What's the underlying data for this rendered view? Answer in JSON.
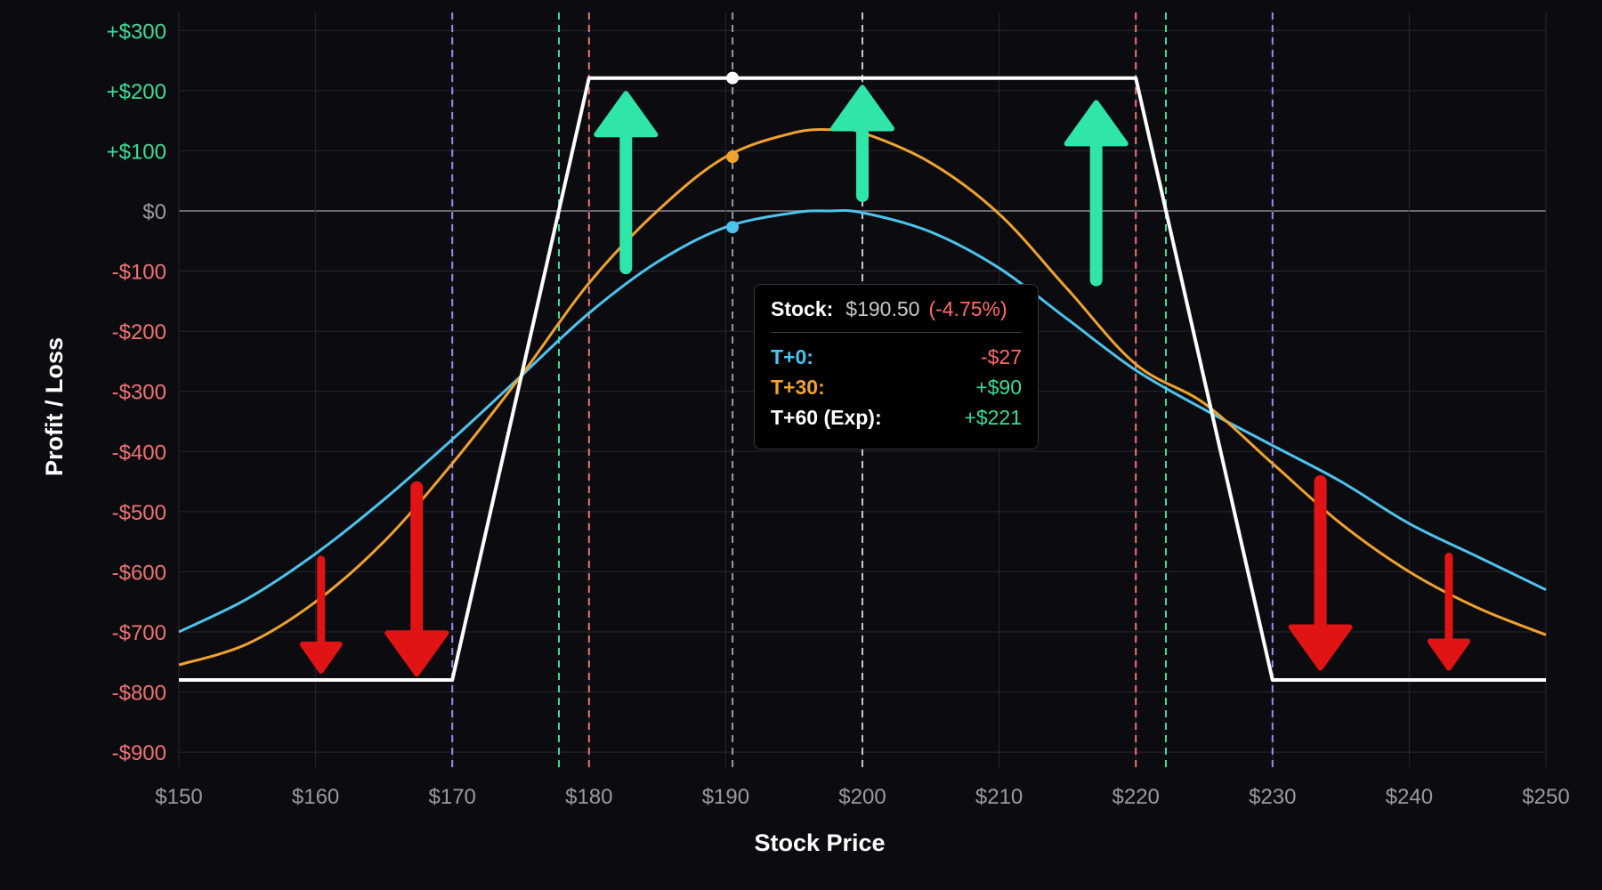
{
  "chart_data": {
    "type": "line",
    "title": "",
    "xlabel": "Stock Price",
    "ylabel": "Profit / Loss",
    "xlim": [
      150,
      250
    ],
    "ylim": [
      -900,
      300
    ],
    "x_ticks": [
      150,
      160,
      170,
      180,
      190,
      200,
      210,
      220,
      230,
      240,
      250
    ],
    "x_tick_labels": [
      "$150",
      "$160",
      "$170",
      "$180",
      "$190",
      "$200",
      "$210",
      "$220",
      "$230",
      "$240",
      "$250"
    ],
    "y_ticks": [
      300,
      200,
      100,
      0,
      -100,
      -200,
      -300,
      -400,
      -500,
      -600,
      -700,
      -800,
      -900
    ],
    "y_tick_labels": [
      "+$300",
      "+$200",
      "+$100",
      "$0",
      "-$100",
      "-$200",
      "-$300",
      "-$400",
      "-$500",
      "-$600",
      "-$700",
      "-$800",
      "-$900"
    ],
    "grid": true,
    "series": [
      {
        "name": "T+0",
        "color": "#4cc4ee",
        "x": [
          150,
          155,
          160,
          165,
          170,
          175,
          180,
          185,
          190,
          195,
          197.5,
          200,
          205,
          210,
          215,
          220,
          225,
          230,
          235,
          240,
          245,
          250
        ],
        "y": [
          -700,
          -645,
          -570,
          -480,
          -380,
          -275,
          -170,
          -85,
          -27,
          -3,
          0,
          -3,
          -35,
          -95,
          -180,
          -265,
          -330,
          -390,
          -450,
          -520,
          -575,
          -630
        ]
      },
      {
        "name": "T+30",
        "color": "#f0a22e",
        "x": [
          150,
          155,
          160,
          165,
          170,
          175,
          180,
          185,
          190,
          195,
          198,
          200,
          205,
          210,
          215,
          220,
          225,
          230,
          235,
          240,
          245,
          250
        ],
        "y": [
          -755,
          -720,
          -650,
          -550,
          -420,
          -275,
          -120,
          0,
          90,
          130,
          135,
          130,
          80,
          -5,
          -130,
          -255,
          -320,
          -420,
          -520,
          -600,
          -660,
          -705
        ]
      },
      {
        "name": "T+60 (Exp)",
        "color": "#ffffff",
        "x": [
          150,
          170,
          180,
          220,
          230,
          250
        ],
        "y": [
          -780,
          -780,
          221,
          221,
          -780,
          -780
        ]
      }
    ],
    "vertical_lines": [
      {
        "x": 170,
        "color": "#9b8cf0"
      },
      {
        "x": 177.8,
        "color": "#3ddc97"
      },
      {
        "x": 180,
        "color": "#f07272"
      },
      {
        "x": 190.5,
        "color": "#9a9aa2"
      },
      {
        "x": 200,
        "color": "#c8c8cc"
      },
      {
        "x": 220,
        "color": "#f07272"
      },
      {
        "x": 222.2,
        "color": "#3ddc97"
      },
      {
        "x": 230,
        "color": "#9b8cf0"
      }
    ],
    "markers": [
      {
        "x": 190.5,
        "y": 221,
        "color": "#ffffff"
      },
      {
        "x": 190.5,
        "y": 90,
        "color": "#f0a22e"
      },
      {
        "x": 190.5,
        "y": -27,
        "color": "#4cc4ee"
      }
    ],
    "arrows": [
      {
        "direction": "up",
        "x": 182.7,
        "y_tail": -95,
        "y_head": 195,
        "color": "#2fe6a8",
        "size": "large"
      },
      {
        "direction": "up",
        "x": 200,
        "y_tail": 25,
        "y_head": 205,
        "color": "#2fe6a8",
        "size": "large"
      },
      {
        "direction": "up",
        "x": 217.1,
        "y_tail": -115,
        "y_head": 180,
        "color": "#2fe6a8",
        "size": "large"
      },
      {
        "direction": "down",
        "x": 160.4,
        "y_tail": -580,
        "y_head": -765,
        "color": "#e01414",
        "size": "small"
      },
      {
        "direction": "down",
        "x": 167.4,
        "y_tail": -460,
        "y_head": -770,
        "color": "#e01414",
        "size": "large"
      },
      {
        "direction": "down",
        "x": 233.5,
        "y_tail": -450,
        "y_head": -760,
        "color": "#e01414",
        "size": "large"
      },
      {
        "direction": "down",
        "x": 242.9,
        "y_tail": -575,
        "y_head": -760,
        "color": "#e01414",
        "size": "small"
      }
    ],
    "colors": {
      "background": "#0c0c10",
      "grid": "#26262c",
      "zero_line": "#6a6a72",
      "positive_tick": "#3ddc97",
      "zero_tick": "#9a9aa2",
      "negative_tick": "#f07272",
      "x_tick": "#9a9aa2"
    }
  },
  "tooltip": {
    "stock_label": "Stock:",
    "stock_value": "$190.50",
    "stock_change": "(-4.75%)",
    "rows": [
      {
        "label": "T+0:",
        "value": "-$27",
        "label_color": "#4cc4ee",
        "value_color": "#ff6b6b"
      },
      {
        "label": "T+30:",
        "value": "+$90",
        "label_color": "#f0a22e",
        "value_color": "#3ddc97"
      },
      {
        "label": "T+60 (Exp):",
        "value": "+$221",
        "label_color": "#ffffff",
        "value_color": "#3ddc97"
      }
    ]
  }
}
